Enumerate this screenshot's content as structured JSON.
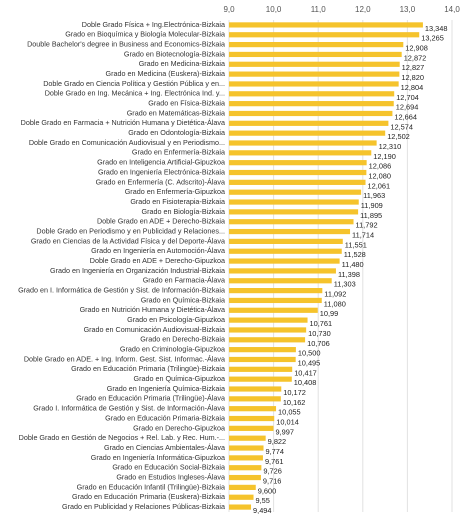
{
  "chart_data": {
    "type": "bar",
    "orientation": "horizontal",
    "color": "#f5c32c",
    "grid": true,
    "xlim": [
      9,
      14
    ],
    "xticks": [
      {
        "value": 9,
        "label": "9,0"
      },
      {
        "value": 10,
        "label": "10,0"
      },
      {
        "value": 11,
        "label": "11,0"
      },
      {
        "value": 12,
        "label": "12,0"
      },
      {
        "value": 13,
        "label": "13,0"
      },
      {
        "value": 14,
        "label": "14,0"
      }
    ],
    "categories": [
      "Doble Grado Física + Ing.Electrónica-Bizkaia",
      "Grado en Bioquímica y Biología Molecular-Bizkaia",
      "Double Bachelor's degree in Business and Economics-Bizkaia",
      "Grado en Biotecnología-Bizkaia",
      "Grado en Medicina-Bizkaia",
      "Grado en Medicina (Euskera)-Bizkaia",
      "Doble Grado en Ciencia Política y Gestión Pública y en...",
      "Doble Grado en Ing. Mecánica + Ing. Electrónica Ind. y...",
      "Grado en Física-Bizkaia",
      "Grado en Matemáticas-Bizkaia",
      "Doble Grado en Farmacia + Nutrición Humana y Dietética-Álava",
      "Grado en Odontología-Bizkaia",
      "Doble Grado en Comunicación Audiovisual y en Periodismo...",
      "Grado en Enfermería-Bizkaia",
      "Grado en Inteligencia Artificial-Gipuzkoa",
      "Grado en Ingeniería Electrónica-Bizkaia",
      "Grado en Enfermería (C. Adscrito)-Álava",
      "Grado en Enfermería-Gipuzkoa",
      "Grado en Fisioterapia-Bizkaia",
      "Grado en Biología-Bizkaia",
      "Doble Grado en ADE + Derecho-Bizkaia",
      "Doble  Grado en Periodismo y en Publicidad y Relaciones...",
      "Grado en Ciencias de la Actividad Física y del Deporte-Álava",
      "Grado en Ingeniería en Automoción-Álava",
      "Doble Grado en ADE + Derecho-Gipuzkoa",
      "Grado en Ingeniería en Organización Industrial-Bizkaia",
      "Grado en Farmacia-Álava",
      "Grado en I. Informática de Gestión y Sist. de Información-Bizkaia",
      "Grado en Química-Bizkaia",
      "Grado en Nutrición Humana y Dietética-Álava",
      "Grado en Psicología-Gipuzkoa",
      "Grado en Comunicación Audiovisual-Bizkaia",
      "Grado en Derecho-Bizkaia",
      "Grado en Criminología-Gipuzkoa",
      "Doble Grado en ADE. + Ing. Inform. Gest. Sist. Informac.-Álava",
      "Grado en Educación Primaria (Trilingüe)-Bizkaia",
      "Grado en Química-Gipuzkoa",
      "Grado en Ingeniería Química-Bizkaia",
      "Grado en Educación Primaria (Trilingüe)-Álava",
      "Grado I. Informática de Gestión y Sist. de Información-Álava",
      "Grado en Educación Primaria-Bizkaia",
      "Grado en Derecho-Gipuzkoa",
      "Doble Grado en Gestión de Negocios + Rel. Lab. y Rec. Hum.-...",
      "Grado en Ciencias Ambientales-Álava",
      "Grado en Ingeniería Informática-Gipuzkoa",
      "Grado en Educación Social-Bizkaia",
      "Grado en Estudios Ingleses-Álava",
      "Grado en Educación Infantil (Trilingüe)-Bizkaia",
      "Grado en Educación Primaria  (Euskera)-Bizkaia",
      "Grado en Publicidad y Relaciones Públicas-Bizkaia"
    ],
    "values": [
      13.348,
      13.265,
      12.908,
      12.872,
      12.827,
      12.82,
      12.804,
      12.704,
      12.694,
      12.664,
      12.574,
      12.502,
      12.31,
      12.19,
      12.086,
      12.08,
      12.061,
      11.963,
      11.909,
      11.895,
      11.792,
      11.714,
      11.551,
      11.528,
      11.48,
      11.398,
      11.303,
      11.092,
      11.08,
      10.99,
      10.761,
      10.73,
      10.706,
      10.5,
      10.495,
      10.417,
      10.408,
      10.172,
      10.162,
      10.055,
      10.014,
      9.997,
      9.822,
      9.774,
      9.761,
      9.726,
      9.716,
      9.6,
      9.55,
      9.494
    ],
    "value_labels": [
      "13,348",
      "13,265",
      "12,908",
      "12,872",
      "12,827",
      "12,820",
      "12,804",
      "12,704",
      "12,694",
      "12,664",
      "12,574",
      "12,502",
      "12,310",
      "12,190",
      "12,086",
      "12,080",
      "12,061",
      "11,963",
      "11,909",
      "11,895",
      "11,792",
      "11,714",
      "11,551",
      "11,528",
      "11,480",
      "11,398",
      "11,303",
      "11,092",
      "11,080",
      "10,99",
      "10,761",
      "10,730",
      "10,706",
      "10,500",
      "10,495",
      "10,417",
      "10,408",
      "10,172",
      "10,162",
      "10,055",
      "10,014",
      "9,997",
      "9,822",
      "9,774",
      "9,761",
      "9,726",
      "9,716",
      "9,600",
      "9,55",
      "9,494"
    ]
  }
}
